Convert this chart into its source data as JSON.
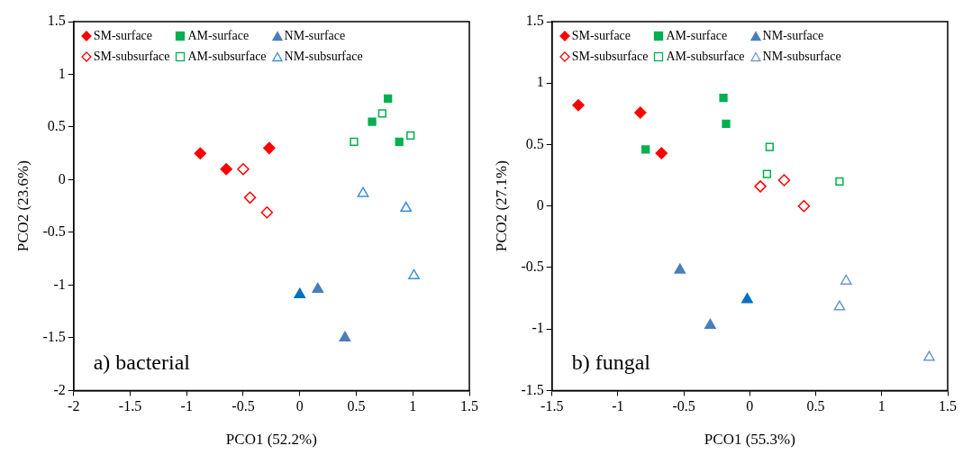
{
  "chart_data": [
    {
      "type": "scatter",
      "xlabel": "PCO1 (52.2%)",
      "ylabel": "PCO2 (23.6%)",
      "annotations": [
        "a) bacterial"
      ],
      "xlim": [
        -2,
        1.5
      ],
      "ylim": [
        -2,
        1.5
      ],
      "xticks": [
        -2,
        -1.5,
        -1,
        -0.5,
        0,
        0.5,
        1,
        1.5
      ],
      "yticks": [
        -2,
        -1.5,
        -1,
        -0.5,
        0,
        0.5,
        1,
        1.5
      ],
      "grid": false,
      "legend": "top left",
      "series": [
        {
          "name": "SM-surface",
          "color": "#ff0000",
          "marker": "diamond",
          "x": [
            -0.88,
            -0.65,
            -0.27
          ],
          "values": [
            0.25,
            0.1,
            0.3
          ]
        },
        {
          "name": "AM-surface",
          "color": "#00b050",
          "marker": "square",
          "x": [
            0.78,
            0.64,
            0.88
          ],
          "values": [
            0.77,
            0.55,
            0.36
          ]
        },
        {
          "name": "NM-surface",
          "color": "#4a7ebb",
          "colors": [
            "#0070c0",
            "#4a7ebb",
            "#4a7ebb"
          ],
          "marker": "triangle",
          "x": [
            0,
            0.16,
            0.4
          ],
          "values": [
            -1.09,
            -1.04,
            -1.5
          ]
        },
        {
          "name": "SM-subsurface",
          "color": "#ff0000",
          "marker": "diamond-open",
          "x": [
            -0.5,
            -0.44,
            -0.29
          ],
          "values": [
            0.1,
            -0.17,
            -0.31
          ]
        },
        {
          "name": "AM-subsurface",
          "color": "#00b050",
          "marker": "square-open",
          "x": [
            0.48,
            0.73,
            0.98
          ],
          "values": [
            0.36,
            0.63,
            0.42
          ]
        },
        {
          "name": "NM-subsurface",
          "color": "#3a8fd9",
          "marker": "triangle-open",
          "x": [
            0.56,
            0.94,
            1.01
          ],
          "values": [
            -0.13,
            -0.27,
            -0.91
          ]
        }
      ]
    },
    {
      "type": "scatter",
      "xlabel": "PCO1 (55.3%)",
      "ylabel": "PCO2 (27.1%)",
      "annotations": [
        "b) fungal"
      ],
      "xlim": [
        -1.5,
        1.5
      ],
      "ylim": [
        -1.5,
        1.5
      ],
      "xticks": [
        -1.5,
        -1,
        -0.5,
        0,
        0.5,
        1,
        1.5
      ],
      "yticks": [
        -1.5,
        -1,
        -0.5,
        0,
        0.5,
        1,
        1.5
      ],
      "grid": false,
      "legend": "top left",
      "series": [
        {
          "name": "SM-surface",
          "color": "#ff0000",
          "marker": "diamond",
          "x": [
            -1.3,
            -0.83,
            -0.67
          ],
          "values": [
            0.82,
            0.76,
            0.43
          ]
        },
        {
          "name": "AM-surface",
          "color": "#00b050",
          "marker": "square",
          "x": [
            -0.79,
            -0.2,
            -0.18
          ],
          "values": [
            0.46,
            0.88,
            0.67
          ]
        },
        {
          "name": "NM-surface",
          "color": "#4a7ebb",
          "colors": [
            "#4a7ebb",
            "#4a7ebb",
            "#0070c0"
          ],
          "marker": "triangle",
          "x": [
            -0.53,
            -0.3,
            -0.02
          ],
          "values": [
            -0.52,
            -0.97,
            -0.76
          ]
        },
        {
          "name": "SM-subsurface",
          "color": "#ff0000",
          "marker": "diamond-open",
          "x": [
            0.08,
            0.26,
            0.41
          ],
          "values": [
            0.16,
            0.21,
            0
          ]
        },
        {
          "name": "AM-subsurface",
          "color": "#00b050",
          "marker": "square-open",
          "x": [
            0.15,
            0.13,
            0.68
          ],
          "values": [
            0.48,
            0.26,
            0.2
          ]
        },
        {
          "name": "NM-subsurface",
          "color": "#6f97d4",
          "marker": "triangle-open",
          "x": [
            0.68,
            0.73,
            1.36
          ],
          "values": [
            -0.82,
            -0.61,
            -1.23
          ]
        }
      ]
    }
  ]
}
